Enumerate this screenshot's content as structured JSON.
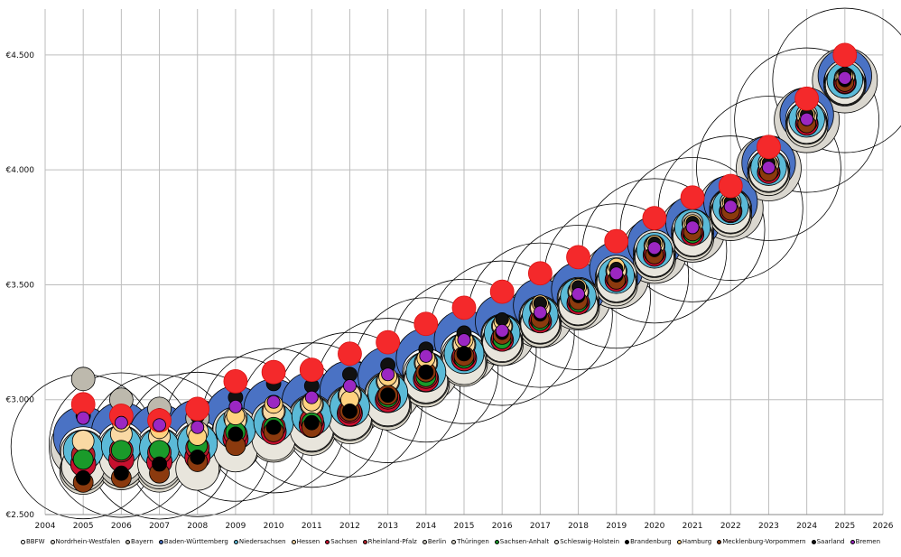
{
  "chart_data": {
    "type": "scatter",
    "title": "",
    "xlabel": "",
    "ylabel": "",
    "xlim": [
      2004,
      2026
    ],
    "ylim": [
      2500,
      4700
    ],
    "x_ticks": [
      "2004",
      "2005",
      "2006",
      "2007",
      "2008",
      "2009",
      "2010",
      "2011",
      "2012",
      "2013",
      "2014",
      "2015",
      "2016",
      "2017",
      "2018",
      "2019",
      "2020",
      "2021",
      "2022",
      "2023",
      "2024",
      "2025",
      "2026"
    ],
    "y_ticks": [
      {
        "value": 2500,
        "label": "€2.500"
      },
      {
        "value": 3000,
        "label": "€3.000"
      },
      {
        "value": 3500,
        "label": "€3.500"
      },
      {
        "value": 4000,
        "label": "€4.000"
      },
      {
        "value": 4500,
        "label": "€4.500"
      }
    ],
    "grid": true,
    "legend_position": "bottom",
    "series": [
      {
        "name": "BBFW",
        "color": "#ffffff",
        "values": [
          2780,
          2800,
          2790,
          2810,
          2860,
          2890,
          2920,
          2960,
          3020,
          3120,
          3200,
          3280,
          3360,
          3440,
          3530,
          3640,
          3730,
          3830,
          4010,
          4220,
          4380
        ]
      },
      {
        "name": "Nordrhein-Westfalen",
        "color": "#dddbd4",
        "values": [
          2770,
          2790,
          2780,
          2800,
          2870,
          2900,
          2920,
          2960,
          3020,
          3110,
          3190,
          3280,
          3360,
          3440,
          3540,
          3650,
          3740,
          3830,
          4000,
          4210,
          4390
        ]
      },
      {
        "name": "Bayern",
        "color": "#bdb9ad",
        "values": [
          3090,
          3000,
          2960,
          2920,
          2920,
          2950,
          2980,
          3020,
          3080,
          3160,
          3240,
          3320,
          3400,
          3470,
          3560,
          3670,
          3770,
          3860,
          4030,
          4240,
          4400
        ]
      },
      {
        "name": "Baden-Württemberg",
        "color": "#4a72c4",
        "values": [
          2840,
          2860,
          2850,
          2870,
          2930,
          2960,
          2990,
          3040,
          3100,
          3180,
          3260,
          3340,
          3410,
          3480,
          3570,
          3680,
          3770,
          3860,
          4030,
          4240,
          4410
        ]
      },
      {
        "name": "Niedersachsen",
        "color": "#5bbad7",
        "values": [
          2780,
          2800,
          2790,
          2810,
          2870,
          2900,
          2930,
          2970,
          3030,
          3120,
          3200,
          3290,
          3370,
          3450,
          3540,
          3650,
          3750,
          3840,
          4010,
          4220,
          4390
        ]
      },
      {
        "name": "Hessen",
        "color": "#f9d9a4",
        "values": [
          2820,
          2850,
          2840,
          2860,
          2910,
          2950,
          2980,
          3020,
          3080,
          3160,
          3240,
          3320,
          3400,
          3470,
          3560,
          3670,
          3760,
          3850,
          4020,
          4230,
          4400
        ]
      },
      {
        "name": "Sachsen",
        "color": "#c8102e",
        "values": [
          2720,
          2740,
          2730,
          2750,
          2830,
          2860,
          2890,
          2940,
          3000,
          3090,
          3180,
          3260,
          3340,
          3420,
          3520,
          3630,
          3720,
          3820,
          3990,
          4200,
          4380
        ]
      },
      {
        "name": "Rheinland-Pfalz",
        "color": "#b6202a",
        "values": [
          2760,
          2780,
          2770,
          2790,
          2850,
          2880,
          2910,
          2950,
          3010,
          3100,
          3190,
          3270,
          3350,
          3430,
          3530,
          3640,
          3730,
          3820,
          4000,
          4210,
          4380
        ]
      },
      {
        "name": "Berlin",
        "color": "#c9c6bd",
        "values": [
          2700,
          2720,
          2710,
          2730,
          2800,
          2840,
          2870,
          2920,
          2980,
          3080,
          3170,
          3250,
          3330,
          3410,
          3510,
          3620,
          3710,
          3810,
          3990,
          4200,
          4370
        ]
      },
      {
        "name": "Thüringen",
        "color": "#d8d4c7",
        "values": [
          2690,
          2710,
          2700,
          2720,
          2790,
          2830,
          2860,
          2910,
          2970,
          3070,
          3160,
          3240,
          3320,
          3400,
          3500,
          3610,
          3700,
          3800,
          3980,
          4190,
          4370
        ]
      },
      {
        "name": "Sachsen-Anhalt",
        "color": "#1a9a2a",
        "values": [
          2740,
          2780,
          2780,
          2800,
          2860,
          2880,
          2900,
          2950,
          3010,
          3100,
          3180,
          3260,
          3340,
          3420,
          3520,
          3630,
          3720,
          3820,
          3990,
          4200,
          4380
        ]
      },
      {
        "name": "Schleswig-Holstein",
        "color": "#e8e5dc",
        "values": [
          2710,
          2740,
          2720,
          2700,
          2780,
          2830,
          2870,
          2920,
          2980,
          3080,
          3160,
          3250,
          3330,
          3410,
          3510,
          3620,
          3710,
          3810,
          3990,
          4200,
          4370
        ]
      },
      {
        "name": "Brandenburg",
        "color": "#000000",
        "values": [
          2660,
          2680,
          2720,
          2750,
          2850,
          2880,
          2900,
          2950,
          3020,
          3120,
          3200,
          3290,
          3370,
          3450,
          3540,
          3650,
          3750,
          3840,
          4010,
          4220,
          4390
        ]
      },
      {
        "name": "Hamburg",
        "color": "#ffd27f",
        "values": [
          2980,
          2900,
          2870,
          2840,
          2930,
          2980,
          2990,
          3000,
          3100,
          3180,
          3260,
          3340,
          3420,
          3490,
          3580,
          3680,
          3770,
          3860,
          4030,
          4240,
          4410
        ]
      },
      {
        "name": "Mecklenburg-Vorpommern",
        "color": "#8b3a0e",
        "values": [
          2640,
          2660,
          2680,
          2730,
          2800,
          2860,
          2880,
          2950,
          3020,
          3120,
          3190,
          3280,
          3350,
          3430,
          3520,
          3630,
          3730,
          3820,
          3990,
          4200,
          4380
        ]
      },
      {
        "name": "Saarland",
        "color": "#111111",
        "values": [
          2930,
          2930,
          2930,
          2930,
          3010,
          3070,
          3060,
          3110,
          3150,
          3220,
          3290,
          3350,
          3420,
          3490,
          3570,
          3680,
          3770,
          3860,
          4030,
          4240,
          4420
        ]
      },
      {
        "name": "Bremen",
        "color": "#9b27c2",
        "values": [
          2920,
          2900,
          2890,
          2880,
          2970,
          2990,
          3010,
          3060,
          3110,
          3190,
          3260,
          3300,
          3380,
          3460,
          3550,
          3660,
          3750,
          3840,
          4010,
          4220,
          4400
        ]
      }
    ],
    "highlight_points": {
      "color": "#f4292b",
      "values": [
        2980,
        2930,
        2910,
        2960,
        3080,
        3120,
        3130,
        3200,
        3250,
        3330,
        3400,
        3470,
        3550,
        3620,
        3690,
        3790,
        3880,
        3930,
        4100,
        4310,
        4500
      ]
    },
    "x": [
      2005,
      2006,
      2007,
      2008,
      2009,
      2010,
      2011,
      2012,
      2013,
      2014,
      2015,
      2016,
      2017,
      2018,
      2019,
      2020,
      2021,
      2022,
      2023,
      2024,
      2025
    ]
  }
}
